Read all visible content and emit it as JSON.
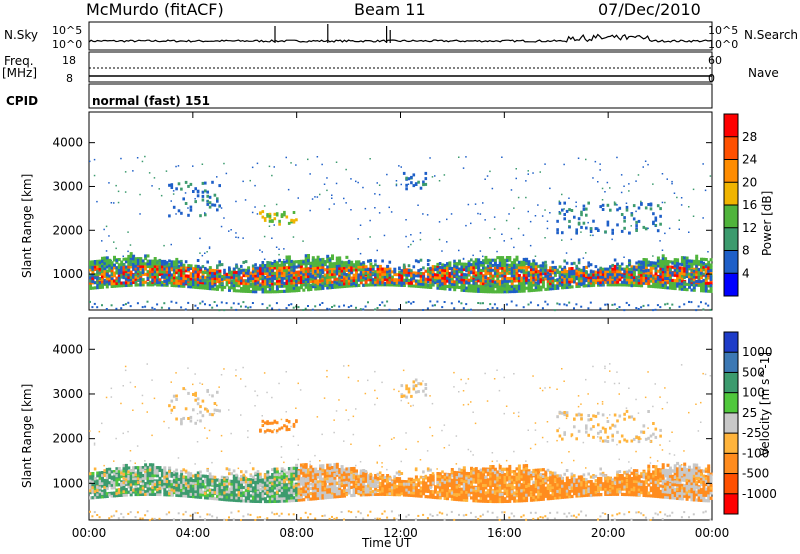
{
  "header": {
    "station": "McMurdo (fitACF)",
    "beam": "Beam 11",
    "date": "07/Dec/2010"
  },
  "top_panels": {
    "nsky_label": "N.Sky",
    "nsearch_label": "N.Search",
    "nsky_ticks": [
      "10^5",
      "10^0"
    ],
    "nsearch_ticks": [
      "10^5",
      "10^0"
    ],
    "freq_label": "Freq.",
    "freq_unit": "[MHz]",
    "freq_ticks": [
      "18",
      "8"
    ],
    "nave_label": "Nave",
    "nave_ticks": [
      "60",
      "0"
    ],
    "cpid_label": "CPID",
    "cpid_value": "normal (fast) 151"
  },
  "chart_data": [
    {
      "type": "heatmap",
      "title": "",
      "xlabel": "Time UT",
      "ylabel": "Slant Range [km]",
      "xlim": [
        "00:00",
        "00:00"
      ],
      "ylim": [
        180,
        4700
      ],
      "yticks": [
        "1000",
        "2000",
        "3000",
        "4000"
      ],
      "xticks": [
        "00:00",
        "04:00",
        "08:00",
        "12:00",
        "16:00",
        "20:00",
        "00:00"
      ],
      "colorbar": {
        "label": "Power [dB]",
        "ticks": [
          "4",
          "8",
          "12",
          "16",
          "20",
          "24",
          "28"
        ],
        "colors": [
          "#0000ff",
          "#1e5fc8",
          "#3c9b6e",
          "#50b43c",
          "#f0b400",
          "#ff8c00",
          "#ff5000",
          "#ff0000"
        ]
      },
      "ground_scatter_band_km": [
        800,
        1250
      ],
      "echo_regions": [
        {
          "t_start": 0.0,
          "t_end": 24.0,
          "r_min": 700,
          "r_max": 1300,
          "level": "high"
        },
        {
          "t_start": 3.0,
          "t_end": 5.0,
          "r_min": 2300,
          "r_max": 3100,
          "level": "low"
        },
        {
          "t_start": 6.5,
          "t_end": 8.0,
          "r_min": 2100,
          "r_max": 2400,
          "level": "mid"
        },
        {
          "t_start": 12.0,
          "t_end": 13.0,
          "r_min": 2900,
          "r_max": 3300,
          "level": "low"
        },
        {
          "t_start": 18.0,
          "t_end": 22.0,
          "r_min": 1900,
          "r_max": 2600,
          "level": "low"
        }
      ]
    },
    {
      "type": "heatmap",
      "title": "",
      "xlabel": "Time UT",
      "ylabel": "Slant Range [km]",
      "xlim": [
        "00:00",
        "00:00"
      ],
      "ylim": [
        180,
        4700
      ],
      "yticks": [
        "1000",
        "2000",
        "3000",
        "4000"
      ],
      "xticks": [
        "00:00",
        "04:00",
        "08:00",
        "12:00",
        "16:00",
        "20:00",
        "00:00"
      ],
      "colorbar": {
        "label": "Velocity [m s^-1]",
        "ticks": [
          "1000",
          "500",
          "100",
          "25",
          "-25",
          "-100",
          "-500",
          "-1000"
        ],
        "colors": [
          "#1e3cc8",
          "#3c78b4",
          "#3c9b6e",
          "#50c83c",
          "#c8c8c8",
          "#ffb43c",
          "#ff8c1e",
          "#ff5000",
          "#ff0000"
        ]
      },
      "dominant_flow": "away (orange) after 12:00, green/toward before 08:00"
    }
  ],
  "axis_title": "Time UT"
}
